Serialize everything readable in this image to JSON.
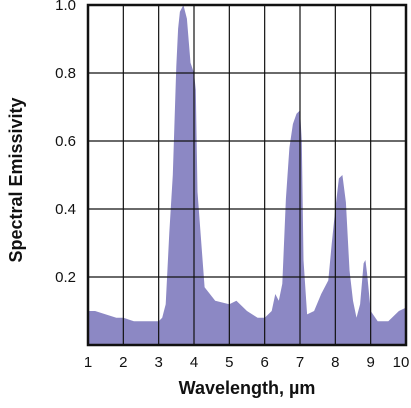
{
  "chart_data": {
    "type": "area",
    "title": "",
    "xlabel": "Wavelength, µm",
    "ylabel": "Spectral Emissivity",
    "xlim": [
      1,
      10
    ],
    "ylim": [
      0,
      1.0
    ],
    "x_ticks": [
      1,
      2,
      3,
      4,
      5,
      6,
      7,
      8,
      9,
      10
    ],
    "y_ticks": [
      0.2,
      0.4,
      0.6,
      0.8,
      1.0
    ],
    "y_tick_labels": [
      "0.2",
      "0.4",
      "0.6",
      "0.8",
      "1.0"
    ],
    "grid": true,
    "legend": "none",
    "fill_color": "#8c88c4",
    "series": [
      {
        "x": [
          1.0,
          1.2,
          1.5,
          1.8,
          2.0,
          2.3,
          2.6,
          3.0,
          3.1,
          3.2,
          3.3,
          3.4,
          3.5,
          3.55,
          3.6,
          3.7,
          3.8,
          3.9,
          4.0,
          4.05,
          4.1,
          4.3,
          4.6,
          5.0,
          5.2,
          5.5,
          5.8,
          6.0,
          6.2,
          6.3,
          6.4,
          6.5,
          6.6,
          6.7,
          6.8,
          6.9,
          7.0,
          7.05,
          7.1,
          7.2,
          7.4,
          7.6,
          7.8,
          7.9,
          8.0,
          8.1,
          8.2,
          8.3,
          8.4,
          8.5,
          8.6,
          8.7,
          8.8,
          8.85,
          8.9,
          9.0,
          9.2,
          9.5,
          9.8,
          10.0
        ],
        "y": [
          0.1,
          0.1,
          0.09,
          0.08,
          0.08,
          0.07,
          0.07,
          0.07,
          0.08,
          0.12,
          0.33,
          0.5,
          0.82,
          0.93,
          0.98,
          1.0,
          0.96,
          0.83,
          0.8,
          0.75,
          0.45,
          0.17,
          0.13,
          0.12,
          0.13,
          0.1,
          0.08,
          0.08,
          0.1,
          0.15,
          0.13,
          0.18,
          0.43,
          0.58,
          0.65,
          0.68,
          0.69,
          0.6,
          0.25,
          0.09,
          0.1,
          0.15,
          0.19,
          0.3,
          0.4,
          0.49,
          0.5,
          0.42,
          0.22,
          0.13,
          0.08,
          0.12,
          0.24,
          0.25,
          0.21,
          0.1,
          0.07,
          0.07,
          0.1,
          0.11
        ]
      }
    ]
  }
}
